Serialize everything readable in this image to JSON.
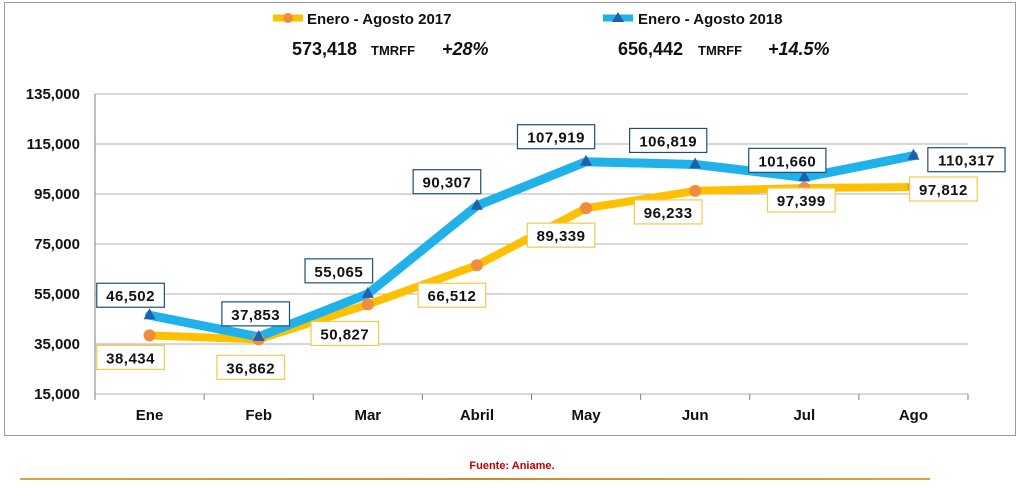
{
  "legend": {
    "series_2017_label": "Enero - Agosto 2017",
    "series_2018_label": "Enero -  Agosto 2018"
  },
  "totals": {
    "total_2017": "573,418",
    "total_2018": "656,442",
    "unit": "TMRFF",
    "growth_2017": "+28%",
    "growth_2018": "+14.5%"
  },
  "source": "Fuente: Aniame.",
  "colors": {
    "series_2017": "#FFC000",
    "series_2017_marker": "#F08C3A",
    "series_2018": "#1FB2EA",
    "series_2018_marker": "#1F5FAE",
    "label_box_2017": "#F2C94C",
    "label_box_2018": "#1F4E79"
  },
  "chart_data": {
    "type": "line",
    "categories": [
      "Ene",
      "Feb",
      "Mar",
      "Abril",
      "May",
      "Jun",
      "Jul",
      "Ago"
    ],
    "series": [
      {
        "name": "Enero - Agosto 2017",
        "values": [
          38434,
          36862,
          50827,
          66512,
          89339,
          96233,
          97399,
          97812
        ],
        "labels": [
          "38,434",
          "36,862",
          "50,827",
          "66,512",
          "89,339",
          "96,233",
          "97,399",
          "97,812"
        ]
      },
      {
        "name": "Enero -  Agosto 2018",
        "values": [
          46502,
          37853,
          55065,
          90307,
          107919,
          106819,
          101660,
          110317
        ],
        "labels": [
          "46,502",
          "37,853",
          "55,065",
          "90,307",
          "107,919",
          "106,819",
          "101,660",
          "110,317"
        ]
      }
    ],
    "yticks": [
      "15,000",
      "35,000",
      "55,000",
      "75,000",
      "95,000",
      "115,000",
      "135,000"
    ],
    "ylim": [
      15000,
      135000
    ],
    "grid": true,
    "legend_position": "top"
  }
}
